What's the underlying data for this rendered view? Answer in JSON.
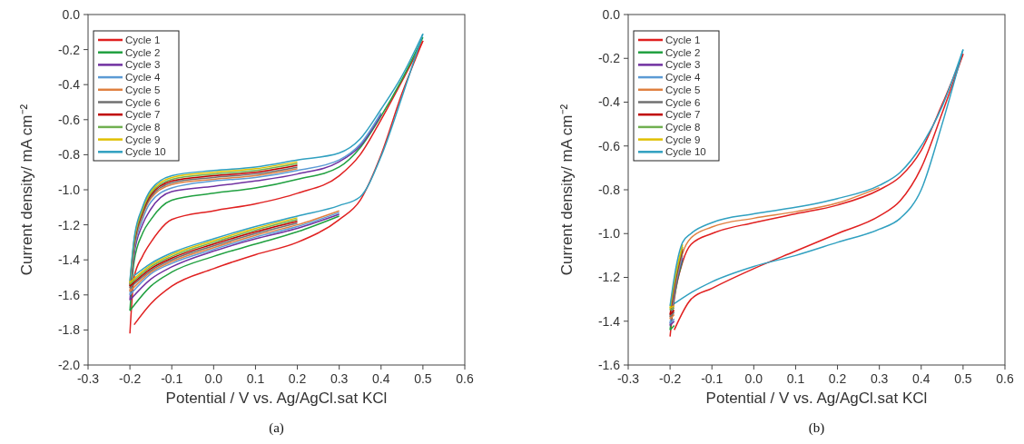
{
  "chart_data": [
    {
      "type": "line",
      "xlabel": "Potential / V vs. Ag/AgCl.sat KCl",
      "ylabel": "Current density/ mA cm⁻²",
      "annotations": [
        "(a)"
      ],
      "legend": "top left",
      "xlim": [
        -0.3,
        0.6
      ],
      "xticks": [
        -0.3,
        -0.2,
        -0.1,
        {
          "value": 0,
          "label": "0.0"
        },
        0.1,
        0.2,
        0.3,
        0.4,
        0.5,
        0.6
      ],
      "ylim": [
        -2,
        0
      ],
      "yticks": [
        {
          "value": 0,
          "label": "0.0"
        },
        -0.2,
        -0.4,
        -0.6,
        -0.8,
        {
          "value": -1,
          "label": "-1.0"
        },
        -1.2,
        -1.4,
        -1.6,
        -1.8,
        {
          "value": -2,
          "label": "-2.0"
        }
      ],
      "series": [
        {
          "name": "Cycle 1",
          "color": "#e02020",
          "x": [
            -0.2,
            -0.19,
            -0.17,
            -0.15,
            -0.1,
            0,
            0.1,
            0.2,
            0.3,
            0.35,
            0.4,
            0.45,
            0.5
          ],
          "values": [
            -1.82,
            -1.5,
            -1.38,
            -1.3,
            -1.17,
            -1.12,
            -1.08,
            -1.02,
            -0.92,
            -0.8,
            -0.6,
            -0.38,
            -0.15
          ]
        },
        {
          "color": "#e02020",
          "x": [
            -0.19,
            -0.15,
            -0.1,
            0,
            0.1,
            0.2,
            0.3,
            0.35,
            0.4,
            0.45,
            0.5
          ],
          "values": [
            -1.77,
            -1.65,
            -1.55,
            -1.45,
            -1.37,
            -1.3,
            -1.17,
            -1.06,
            -0.8,
            -0.45,
            -0.15
          ]
        },
        {
          "name": "Cycle 2",
          "color": "#20a040",
          "x": [
            -0.2,
            -0.19,
            -0.17,
            -0.15,
            -0.1,
            0,
            0.1,
            0.2,
            0.3,
            0.35,
            0.4,
            0.45,
            0.5
          ],
          "values": [
            -1.69,
            -1.41,
            -1.25,
            -1.17,
            -1.06,
            -1.02,
            -0.99,
            -0.94,
            -0.87,
            -0.76,
            -0.58,
            -0.37,
            -0.13
          ]
        },
        {
          "color": "#20a040",
          "x": [
            -0.2,
            -0.15,
            -0.1,
            0,
            0.1,
            0.2,
            0.3
          ],
          "values": [
            -1.69,
            -1.55,
            -1.47,
            -1.38,
            -1.31,
            -1.24,
            -1.15
          ]
        },
        {
          "name": "Cycle 3",
          "color": "#7030a0",
          "x": [
            -0.2,
            -0.19,
            -0.17,
            -0.15,
            -0.1,
            0,
            0.1,
            0.2,
            0.3,
            0.35,
            0.4
          ],
          "values": [
            -1.63,
            -1.37,
            -1.2,
            -1.11,
            -1.01,
            -0.98,
            -0.95,
            -0.91,
            -0.84,
            -0.75,
            -0.57
          ]
        },
        {
          "color": "#7030a0",
          "x": [
            -0.2,
            -0.15,
            -0.1,
            0,
            0.1,
            0.2,
            0.3
          ],
          "values": [
            -1.63,
            -1.51,
            -1.44,
            -1.35,
            -1.28,
            -1.22,
            -1.14
          ]
        },
        {
          "name": "Cycle 4",
          "color": "#5b9bd5",
          "x": [
            -0.2,
            -0.19,
            -0.17,
            -0.15,
            -0.1,
            0,
            0.1,
            0.2,
            0.3,
            0.35,
            0.4
          ],
          "values": [
            -1.6,
            -1.35,
            -1.17,
            -1.07,
            -0.99,
            -0.95,
            -0.93,
            -0.89,
            -0.83,
            -0.74,
            -0.56
          ]
        },
        {
          "color": "#5b9bd5",
          "x": [
            -0.2,
            -0.15,
            -0.1,
            0,
            0.1,
            0.2,
            0.3
          ],
          "values": [
            -1.6,
            -1.48,
            -1.42,
            -1.34,
            -1.27,
            -1.21,
            -1.13
          ]
        },
        {
          "name": "Cycle 5",
          "color": "#e08040",
          "x": [
            -0.2,
            -0.19,
            -0.17,
            -0.15,
            -0.1,
            0,
            0.1,
            0.2
          ],
          "values": [
            -1.58,
            -1.33,
            -1.15,
            -1.05,
            -0.97,
            -0.94,
            -0.92,
            -0.88
          ]
        },
        {
          "color": "#e08040",
          "x": [
            -0.2,
            -0.15,
            -0.1,
            0,
            0.1,
            0.2,
            0.3
          ],
          "values": [
            -1.58,
            -1.47,
            -1.41,
            -1.33,
            -1.26,
            -1.2,
            -1.12
          ]
        },
        {
          "name": "Cycle 6",
          "color": "#707070",
          "x": [
            -0.2,
            -0.19,
            -0.17,
            -0.15,
            -0.1,
            0,
            0.1,
            0.2
          ],
          "values": [
            -1.56,
            -1.32,
            -1.14,
            -1.04,
            -0.96,
            -0.93,
            -0.91,
            -0.87
          ]
        },
        {
          "color": "#707070",
          "x": [
            -0.2,
            -0.15,
            -0.1,
            0,
            0.1,
            0.2
          ],
          "values": [
            -1.56,
            -1.46,
            -1.4,
            -1.32,
            -1.25,
            -1.19
          ]
        },
        {
          "name": "Cycle 7",
          "color": "#c00000",
          "x": [
            -0.2,
            -0.19,
            -0.17,
            -0.15,
            -0.1,
            0,
            0.1,
            0.2
          ],
          "values": [
            -1.55,
            -1.31,
            -1.13,
            -1.03,
            -0.95,
            -0.92,
            -0.9,
            -0.86
          ]
        },
        {
          "color": "#c00000",
          "x": [
            -0.2,
            -0.15,
            -0.1,
            0,
            0.1,
            0.2
          ],
          "values": [
            -1.55,
            -1.45,
            -1.39,
            -1.31,
            -1.24,
            -1.18
          ]
        },
        {
          "name": "Cycle 8",
          "color": "#70b050",
          "x": [
            -0.2,
            -0.19,
            -0.17,
            -0.15,
            -0.1,
            0,
            0.1,
            0.2
          ],
          "values": [
            -1.54,
            -1.3,
            -1.12,
            -1.02,
            -0.94,
            -0.91,
            -0.89,
            -0.85
          ]
        },
        {
          "color": "#70b050",
          "x": [
            -0.2,
            -0.15,
            -0.1,
            0,
            0.1,
            0.2
          ],
          "values": [
            -1.54,
            -1.44,
            -1.38,
            -1.3,
            -1.23,
            -1.17
          ]
        },
        {
          "name": "Cycle 9",
          "color": "#e0c000",
          "x": [
            -0.2,
            -0.19,
            -0.17,
            -0.15,
            -0.1,
            0,
            0.1,
            0.2
          ],
          "values": [
            -1.53,
            -1.29,
            -1.11,
            -1.01,
            -0.93,
            -0.9,
            -0.88,
            -0.84
          ]
        },
        {
          "color": "#e0c000",
          "x": [
            -0.2,
            -0.15,
            -0.1,
            0,
            0.1,
            0.2
          ],
          "values": [
            -1.53,
            -1.43,
            -1.37,
            -1.29,
            -1.22,
            -1.16
          ]
        },
        {
          "name": "Cycle 10",
          "color": "#30a0c0",
          "x": [
            -0.2,
            -0.19,
            -0.17,
            -0.15,
            -0.1,
            0,
            0.1,
            0.2,
            0.3,
            0.35,
            0.4,
            0.45,
            0.5
          ],
          "values": [
            -1.52,
            -1.28,
            -1.1,
            -1.0,
            -0.92,
            -0.89,
            -0.87,
            -0.83,
            -0.79,
            -0.71,
            -0.54,
            -0.35,
            -0.11
          ]
        },
        {
          "color": "#30a0c0",
          "x": [
            -0.19,
            -0.15,
            -0.1,
            0,
            0.1,
            0.2,
            0.3,
            0.35,
            0.4,
            0.45,
            0.5
          ],
          "values": [
            -1.49,
            -1.42,
            -1.36,
            -1.28,
            -1.21,
            -1.15,
            -1.09,
            -1.04,
            -0.81,
            -0.47,
            -0.11
          ]
        }
      ]
    },
    {
      "type": "line",
      "xlabel": "Potential / V vs. Ag/AgCl.sat KCl",
      "ylabel": "Current density/ mA cm⁻²",
      "annotations": [
        "(b)"
      ],
      "legend": "top left",
      "xlim": [
        -0.3,
        0.6
      ],
      "xticks": [
        -0.3,
        -0.2,
        -0.1,
        {
          "value": 0,
          "label": "0.0"
        },
        0.1,
        0.2,
        0.3,
        0.4,
        0.5,
        0.6
      ],
      "ylim": [
        -1.6,
        0
      ],
      "yticks": [
        {
          "value": 0,
          "label": "0.0"
        },
        -0.2,
        -0.4,
        -0.6,
        -0.8,
        {
          "value": -1,
          "label": "-1.0"
        },
        -1.2,
        -1.4,
        -1.6
      ],
      "series": [
        {
          "name": "Cycle 1",
          "color": "#e02020",
          "x": [
            -0.2,
            -0.19,
            -0.17,
            -0.15,
            -0.1,
            0,
            0.1,
            0.2,
            0.3,
            0.35,
            0.4,
            0.45,
            0.5
          ],
          "values": [
            -1.47,
            -1.3,
            -1.13,
            -1.05,
            -1.0,
            -0.95,
            -0.91,
            -0.87,
            -0.8,
            -0.74,
            -0.62,
            -0.41,
            -0.18
          ]
        },
        {
          "color": "#e02020",
          "x": [
            -0.19,
            -0.15,
            -0.1,
            0,
            0.1,
            0.2,
            0.3,
            0.35,
            0.4,
            0.45,
            0.5
          ],
          "values": [
            -1.44,
            -1.3,
            -1.25,
            -1.16,
            -1.08,
            -1.0,
            -0.92,
            -0.85,
            -0.7,
            -0.45,
            -0.18
          ]
        },
        {
          "name": "Cycle 2",
          "color": "#20a040",
          "x": [
            -0.2,
            -0.19,
            -0.17
          ],
          "values": [
            -1.44,
            -1.29,
            -1.12
          ]
        },
        {
          "color": "#20a040",
          "x": [
            -0.2,
            -0.19
          ],
          "values": [
            -1.44,
            -1.42
          ]
        },
        {
          "name": "Cycle 3",
          "color": "#7030a0",
          "x": [
            -0.2,
            -0.19,
            -0.17
          ],
          "values": [
            -1.42,
            -1.28,
            -1.11
          ]
        },
        {
          "color": "#7030a0",
          "x": [
            -0.2,
            -0.19
          ],
          "values": [
            -1.42,
            -1.4
          ]
        },
        {
          "name": "Cycle 4",
          "color": "#5b9bd5",
          "x": [
            -0.2,
            -0.19,
            -0.17
          ],
          "values": [
            -1.41,
            -1.27,
            -1.1
          ]
        },
        {
          "color": "#5b9bd5",
          "x": [
            -0.2,
            -0.19
          ],
          "values": [
            -1.41,
            -1.39
          ]
        },
        {
          "name": "Cycle 5",
          "color": "#e08040",
          "x": [
            -0.2,
            -0.19,
            -0.17,
            -0.15,
            -0.1,
            0,
            0.1,
            0.2,
            0.3
          ],
          "values": [
            -1.39,
            -1.26,
            -1.09,
            -1.02,
            -0.97,
            -0.93,
            -0.9,
            -0.86,
            -0.79
          ]
        },
        {
          "color": "#e08040",
          "x": [
            -0.2,
            -0.19
          ],
          "values": [
            -1.39,
            -1.37
          ]
        },
        {
          "name": "Cycle 6",
          "color": "#707070",
          "x": [
            -0.2,
            -0.19,
            -0.17
          ],
          "values": [
            -1.38,
            -1.25,
            -1.08
          ]
        },
        {
          "color": "#707070",
          "x": [
            -0.2,
            -0.19
          ],
          "values": [
            -1.38,
            -1.36
          ]
        },
        {
          "name": "Cycle 7",
          "color": "#c00000",
          "x": [
            -0.2,
            -0.19,
            -0.17
          ],
          "values": [
            -1.37,
            -1.24,
            -1.07
          ]
        },
        {
          "color": "#c00000",
          "x": [
            -0.2,
            -0.19
          ],
          "values": [
            -1.37,
            -1.35
          ]
        },
        {
          "name": "Cycle 8",
          "color": "#70b050",
          "x": [
            -0.2,
            -0.19,
            -0.17
          ],
          "values": [
            -1.35,
            -1.23,
            -1.06
          ]
        },
        {
          "color": "#70b050",
          "x": [
            -0.2,
            -0.19
          ],
          "values": [
            -1.35,
            -1.34
          ]
        },
        {
          "name": "Cycle 9",
          "color": "#e0c000",
          "x": [
            -0.2,
            -0.19,
            -0.17
          ],
          "values": [
            -1.34,
            -1.22,
            -1.05
          ]
        },
        {
          "color": "#e0c000",
          "x": [
            -0.2,
            -0.19
          ],
          "values": [
            -1.34,
            -1.33
          ]
        },
        {
          "name": "Cycle 10",
          "color": "#30a0c0",
          "x": [
            -0.2,
            -0.19,
            -0.17,
            -0.15,
            -0.1,
            0,
            0.1,
            0.2,
            0.3,
            0.35,
            0.4,
            0.45,
            0.5
          ],
          "values": [
            -1.33,
            -1.2,
            -1.04,
            -1.0,
            -0.95,
            -0.91,
            -0.88,
            -0.84,
            -0.78,
            -0.72,
            -0.6,
            -0.42,
            -0.16
          ]
        },
        {
          "color": "#30a0c0",
          "x": [
            -0.19,
            -0.15,
            -0.1,
            0,
            0.1,
            0.2,
            0.3,
            0.35,
            0.4,
            0.45,
            0.5
          ],
          "values": [
            -1.32,
            -1.27,
            -1.22,
            -1.15,
            -1.1,
            -1.04,
            -0.98,
            -0.93,
            -0.8,
            -0.5,
            -0.16
          ]
        }
      ]
    }
  ]
}
